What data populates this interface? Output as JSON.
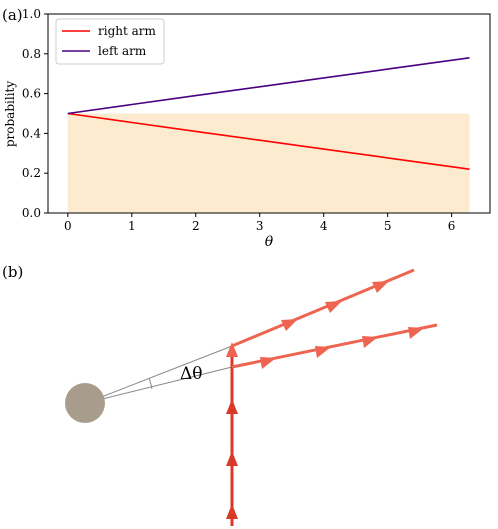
{
  "panel_a_label": "(a)",
  "panel_b_label": "(b)",
  "chart_data": {
    "type": "line",
    "xlabel": "θ",
    "ylabel": "probability",
    "xlim": [
      -0.31,
      6.6
    ],
    "ylim": [
      0.0,
      1.0
    ],
    "xticks": [
      0,
      1,
      2,
      3,
      4,
      5,
      6
    ],
    "yticks": [
      0.0,
      0.2,
      0.4,
      0.6,
      0.8,
      1.0
    ],
    "grid": false,
    "legend_position": "top-left",
    "shaded_region": {
      "x": [
        0,
        6.28
      ],
      "y": [
        0,
        0.5
      ],
      "color": "#fdebd0"
    },
    "series": [
      {
        "name": "right arm",
        "color": "#ff0000",
        "x": [
          0,
          1,
          2,
          3,
          4,
          5,
          6.28
        ],
        "y": [
          0.5,
          0.455,
          0.41,
          0.366,
          0.321,
          0.277,
          0.22
        ]
      },
      {
        "name": "left arm",
        "color": "#4b0082",
        "x": [
          0,
          1,
          2,
          3,
          4,
          5,
          6.28
        ],
        "y": [
          0.5,
          0.545,
          0.59,
          0.634,
          0.679,
          0.723,
          0.78
        ]
      }
    ]
  },
  "diagram": {
    "angle_label": "Δθ",
    "source_color": "#a89c8c",
    "beam_color": "#d93a28",
    "deflected_color": "#ee6450"
  }
}
